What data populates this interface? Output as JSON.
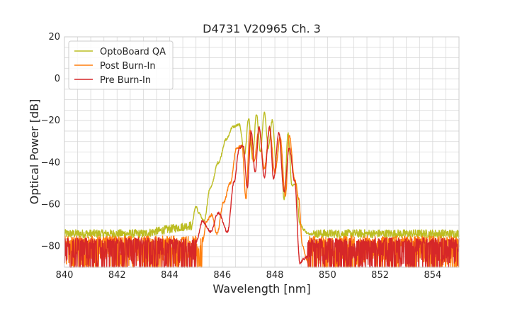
{
  "chart_data": {
    "type": "line",
    "title": "D4731 V20965 Ch. 3",
    "xlabel": "Wavelength [nm]",
    "ylabel": "Optical Power [dB]",
    "xlim": [
      840,
      855
    ],
    "ylim": [
      -90,
      20
    ],
    "xticks": [
      840,
      842,
      844,
      846,
      848,
      850,
      852,
      854
    ],
    "yticks": [
      20,
      0,
      -20,
      -40,
      -60,
      -80
    ],
    "xtick_labels": [
      "840",
      "842",
      "844",
      "846",
      "848",
      "850",
      "852",
      "854"
    ],
    "ytick_labels": [
      "20",
      "0",
      "−20",
      "−40",
      "−60",
      "−80"
    ],
    "grid": true,
    "legend_position": "top-left",
    "series": [
      {
        "name": "OptoBoard QA",
        "color": "#bcbd22",
        "noise_floor": -74,
        "x": [
          844.8,
          845.0,
          845.1,
          845.3,
          845.55,
          845.85,
          846.15,
          846.4,
          846.65,
          846.85,
          847.0,
          847.15,
          847.3,
          847.45,
          847.6,
          847.75,
          847.9,
          848.05,
          848.2,
          848.35,
          848.5,
          848.65,
          848.8,
          848.95,
          849.1,
          849.25,
          849.45
        ],
        "y": [
          -72,
          -61,
          -64,
          -68,
          -52,
          -40,
          -29,
          -23,
          -22,
          -36,
          -19,
          -38,
          -17,
          -35,
          -16,
          -33,
          -20,
          -40,
          -28,
          -58,
          -26,
          -51,
          -50,
          -69,
          -72,
          -74,
          -74
        ]
      },
      {
        "name": "Post Burn-In",
        "color": "#ff7f0e",
        "noise_floor": -75,
        "x": [
          845.25,
          845.4,
          845.6,
          845.8,
          846.05,
          846.3,
          846.55,
          846.75,
          846.9,
          847.05,
          847.2,
          847.4,
          847.6,
          847.8,
          848.0,
          848.2,
          848.4,
          848.55,
          848.75,
          848.9,
          849.05,
          849.2,
          849.3
        ],
        "y": [
          -78,
          -68,
          -65,
          -74,
          -59,
          -50,
          -33,
          -32,
          -57,
          -25,
          -40,
          -24,
          -43,
          -24,
          -45,
          -28,
          -56,
          -27,
          -48,
          -57,
          -80,
          -86,
          -90
        ]
      },
      {
        "name": "Pre Burn-In",
        "color": "#d62728",
        "noise_floor": -76,
        "x": [
          845.0,
          845.25,
          845.55,
          845.85,
          846.2,
          846.45,
          846.65,
          846.8,
          846.95,
          847.1,
          847.25,
          847.4,
          847.6,
          847.8,
          847.95,
          848.15,
          848.35,
          848.55,
          848.75,
          848.95,
          849.1,
          849.25
        ],
        "y": [
          -78,
          -68,
          -73,
          -64,
          -73,
          -49,
          -33,
          -32,
          -52,
          -25,
          -45,
          -23,
          -47,
          -23,
          -48,
          -26,
          -54,
          -33,
          -49,
          -88,
          -86,
          -85
        ]
      }
    ]
  }
}
